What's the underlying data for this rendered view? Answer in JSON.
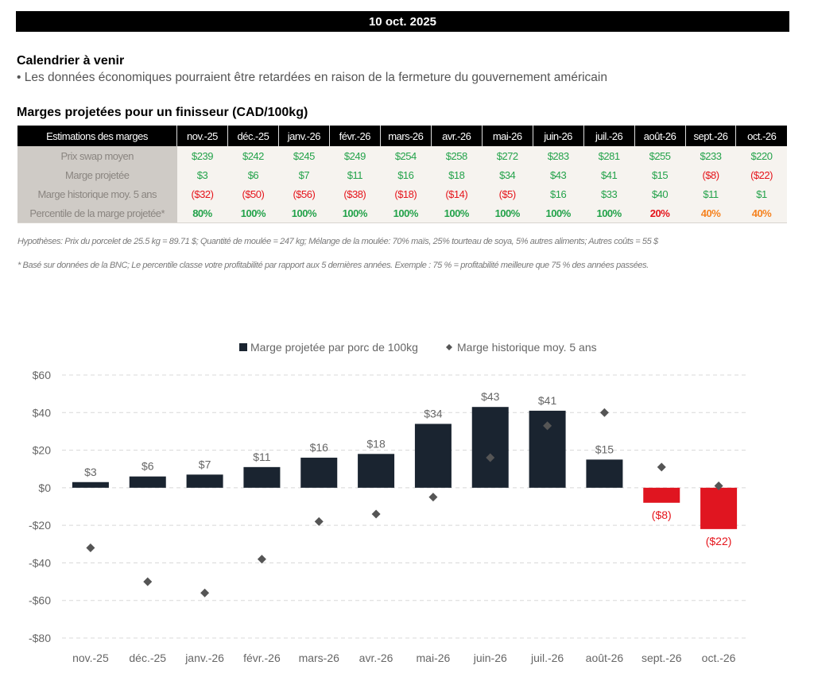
{
  "header": {
    "date": "10 oct. 2025"
  },
  "calendar": {
    "title": "Calendrier à venir",
    "bullet": "• Les données économiques pourraient être retardées en raison de la fermeture du gouvernement américain"
  },
  "margins_table": {
    "title": "Marges projetées pour un finisseur (CAD/100kg)",
    "corner_header": "Estimations des marges",
    "columns": [
      "nov.-25",
      "déc.-25",
      "janv.-26",
      "févr.-26",
      "mars-26",
      "avr.-26",
      "mai-26",
      "juin-26",
      "juil.-26",
      "août-26",
      "sept.-26",
      "oct.-26"
    ],
    "rows": [
      {
        "label": "Prix swap moyen",
        "cells": [
          {
            "v": "$239",
            "c": "pos"
          },
          {
            "v": "$242",
            "c": "pos"
          },
          {
            "v": "$245",
            "c": "pos"
          },
          {
            "v": "$249",
            "c": "pos"
          },
          {
            "v": "$254",
            "c": "pos"
          },
          {
            "v": "$258",
            "c": "pos"
          },
          {
            "v": "$272",
            "c": "pos"
          },
          {
            "v": "$283",
            "c": "pos"
          },
          {
            "v": "$281",
            "c": "pos"
          },
          {
            "v": "$255",
            "c": "pos"
          },
          {
            "v": "$233",
            "c": "pos"
          },
          {
            "v": "$220",
            "c": "pos"
          }
        ]
      },
      {
        "label": "Marge projetée",
        "cells": [
          {
            "v": "$3",
            "c": "pos"
          },
          {
            "v": "$6",
            "c": "pos"
          },
          {
            "v": "$7",
            "c": "pos"
          },
          {
            "v": "$11",
            "c": "pos"
          },
          {
            "v": "$16",
            "c": "pos"
          },
          {
            "v": "$18",
            "c": "pos"
          },
          {
            "v": "$34",
            "c": "pos"
          },
          {
            "v": "$43",
            "c": "pos"
          },
          {
            "v": "$41",
            "c": "pos"
          },
          {
            "v": "$15",
            "c": "pos"
          },
          {
            "v": "($8)",
            "c": "neg"
          },
          {
            "v": "($22)",
            "c": "neg"
          }
        ]
      },
      {
        "label": "Marge historique moy. 5 ans",
        "cells": [
          {
            "v": "($32)",
            "c": "neg"
          },
          {
            "v": "($50)",
            "c": "neg"
          },
          {
            "v": "($56)",
            "c": "neg"
          },
          {
            "v": "($38)",
            "c": "neg"
          },
          {
            "v": "($18)",
            "c": "neg"
          },
          {
            "v": "($14)",
            "c": "neg"
          },
          {
            "v": "($5)",
            "c": "neg"
          },
          {
            "v": "$16",
            "c": "pos"
          },
          {
            "v": "$33",
            "c": "pos"
          },
          {
            "v": "$40",
            "c": "pos"
          },
          {
            "v": "$11",
            "c": "pos"
          },
          {
            "v": "$1",
            "c": "pos"
          }
        ]
      },
      {
        "label": "Percentile de la marge projetée*",
        "cells": [
          {
            "v": "80%",
            "c": "pos bold"
          },
          {
            "v": "100%",
            "c": "pos bold"
          },
          {
            "v": "100%",
            "c": "pos bold"
          },
          {
            "v": "100%",
            "c": "pos bold"
          },
          {
            "v": "100%",
            "c": "pos bold"
          },
          {
            "v": "100%",
            "c": "pos bold"
          },
          {
            "v": "100%",
            "c": "pos bold"
          },
          {
            "v": "100%",
            "c": "pos bold"
          },
          {
            "v": "100%",
            "c": "pos bold"
          },
          {
            "v": "20%",
            "c": "neg bold"
          },
          {
            "v": "40%",
            "c": "warn bold"
          },
          {
            "v": "40%",
            "c": "warn bold"
          }
        ]
      }
    ]
  },
  "footnotes": {
    "assumptions": "Hypothèses: Prix du porcelet de 25.5 kg = 89.71 $; Quantité de moulée = 247 kg; Mélange de la moulée: 70% maïs, 25% tourteau de soya, 5% autres aliments; Autres coûts = 55 $",
    "percentile": "* Basé sur données de la BNC; Le percentile classe votre profitabilité par rapport aux 5 dernières années. Exemple : 75 % = profitabilité meilleure que 75 % des années passées."
  },
  "colors": {
    "bar_positive": "#1a2430",
    "bar_negative": "#e01520",
    "marker": "#555555",
    "grid": "#d8d8d8",
    "negative_label": "#e5141b"
  },
  "chart_data": {
    "type": "bar",
    "title": "",
    "xlabel": "",
    "ylabel": "",
    "categories": [
      "nov.-25",
      "déc.-25",
      "janv.-26",
      "févr.-26",
      "mars-26",
      "avr.-26",
      "mai-26",
      "juin-26",
      "juil.-26",
      "août-26",
      "sept.-26",
      "oct.-26"
    ],
    "series": [
      {
        "name": "Marge projetée par porc de 100kg",
        "kind": "bar",
        "values": [
          3,
          6,
          7,
          11,
          16,
          18,
          34,
          43,
          41,
          15,
          -8,
          -22
        ],
        "labels": [
          "$3",
          "$6",
          "$7",
          "$11",
          "$16",
          "$18",
          "$34",
          "$43",
          "$41",
          "$15",
          "($8)",
          "($22)"
        ]
      },
      {
        "name": "Marge historique moy. 5 ans",
        "kind": "scatter",
        "marker": "diamond",
        "values": [
          -32,
          -50,
          -56,
          -38,
          -18,
          -14,
          -5,
          16,
          33,
          40,
          11,
          1
        ]
      }
    ],
    "ylim": [
      -80,
      60
    ],
    "yticks": [
      60,
      40,
      20,
      0,
      -20,
      -40,
      -60,
      -80
    ],
    "ytick_labels": [
      "$60",
      "$40",
      "$20",
      "$0",
      "-$20",
      "-$40",
      "-$60",
      "-$80"
    ],
    "grid": true,
    "legend_position": "top-center"
  }
}
